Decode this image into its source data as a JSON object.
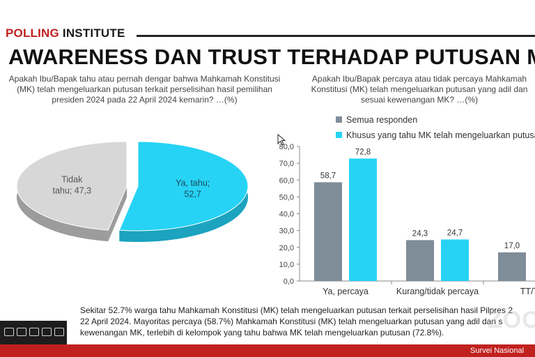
{
  "header": {
    "brand_part1": "POLLING",
    "brand_part2": " INSTITUTE",
    "title": "AWARENESS DAN TRUST TERHADAP PUTUSAN MK"
  },
  "colors": {
    "accent": "#c0211f",
    "series_gray": "#7f8d99",
    "series_cyan": "#27d3f5",
    "pie_gray": "#d7d7d7"
  },
  "chart_data": [
    {
      "type": "pie",
      "question": "Apakah Ibu/Bapak tahu atau pernah dengar bahwa Mahkamah Konstitusi (MK) telah mengeluarkan putusan terkait perselisihan hasil pemilihan presiden 2024 pada 22 April 2024 kemarin? …(%)",
      "slices": [
        {
          "label_line1": "Ya, tahu;",
          "label_line2": "52,7",
          "value": 52.7
        },
        {
          "label_line1": "Tidak",
          "label_line2": "tahu; 47,3",
          "value": 47.3
        }
      ]
    },
    {
      "type": "bar",
      "question": "Apakah Ibu/Bapak percaya atau tidak percaya Mahkamah Konstitusi (MK) telah mengeluarkan putusan yang adil dan sesuai kewenangan MK? …(%)",
      "categories": [
        "Ya, percaya",
        "Kurang/tidak percaya",
        "TT/T"
      ],
      "series": [
        {
          "name": "Semua responden",
          "values": [
            58.7,
            24.3,
            17.0
          ],
          "labels": [
            "58,7",
            "24,3",
            "17,0"
          ]
        },
        {
          "name": "Khusus yang tahu MK telah mengeluarkan putusan",
          "values": [
            72.8,
            24.7,
            null
          ],
          "labels": [
            "72,8",
            "24,7",
            ""
          ]
        }
      ],
      "ylim": [
        0,
        80
      ],
      "yticks": [
        "0,0",
        "10,0",
        "20,0",
        "30,0",
        "40,0",
        "50,0",
        "60,0",
        "70,0",
        "80,0"
      ],
      "grid": false,
      "legend_position": "top"
    }
  ],
  "summary_lines": [
    "Sekitar 52.7% warga tahu Mahkamah Konstitusi (MK) telah mengeluarkan putusan terkait perselisihan hasil Pilpres 2",
    "22 April 2024. Mayoritas percaya (58.7%) Mahkamah Konstitusi (MK) telah mengeluarkan putusan yang adil dan s",
    "kewenangan MK, terlebih di kelompok yang tahu bahwa MK telah mengeluarkan putusan (72.8%)."
  ],
  "footer": {
    "text": "Survei Nasional"
  },
  "watermark": "ZOO"
}
